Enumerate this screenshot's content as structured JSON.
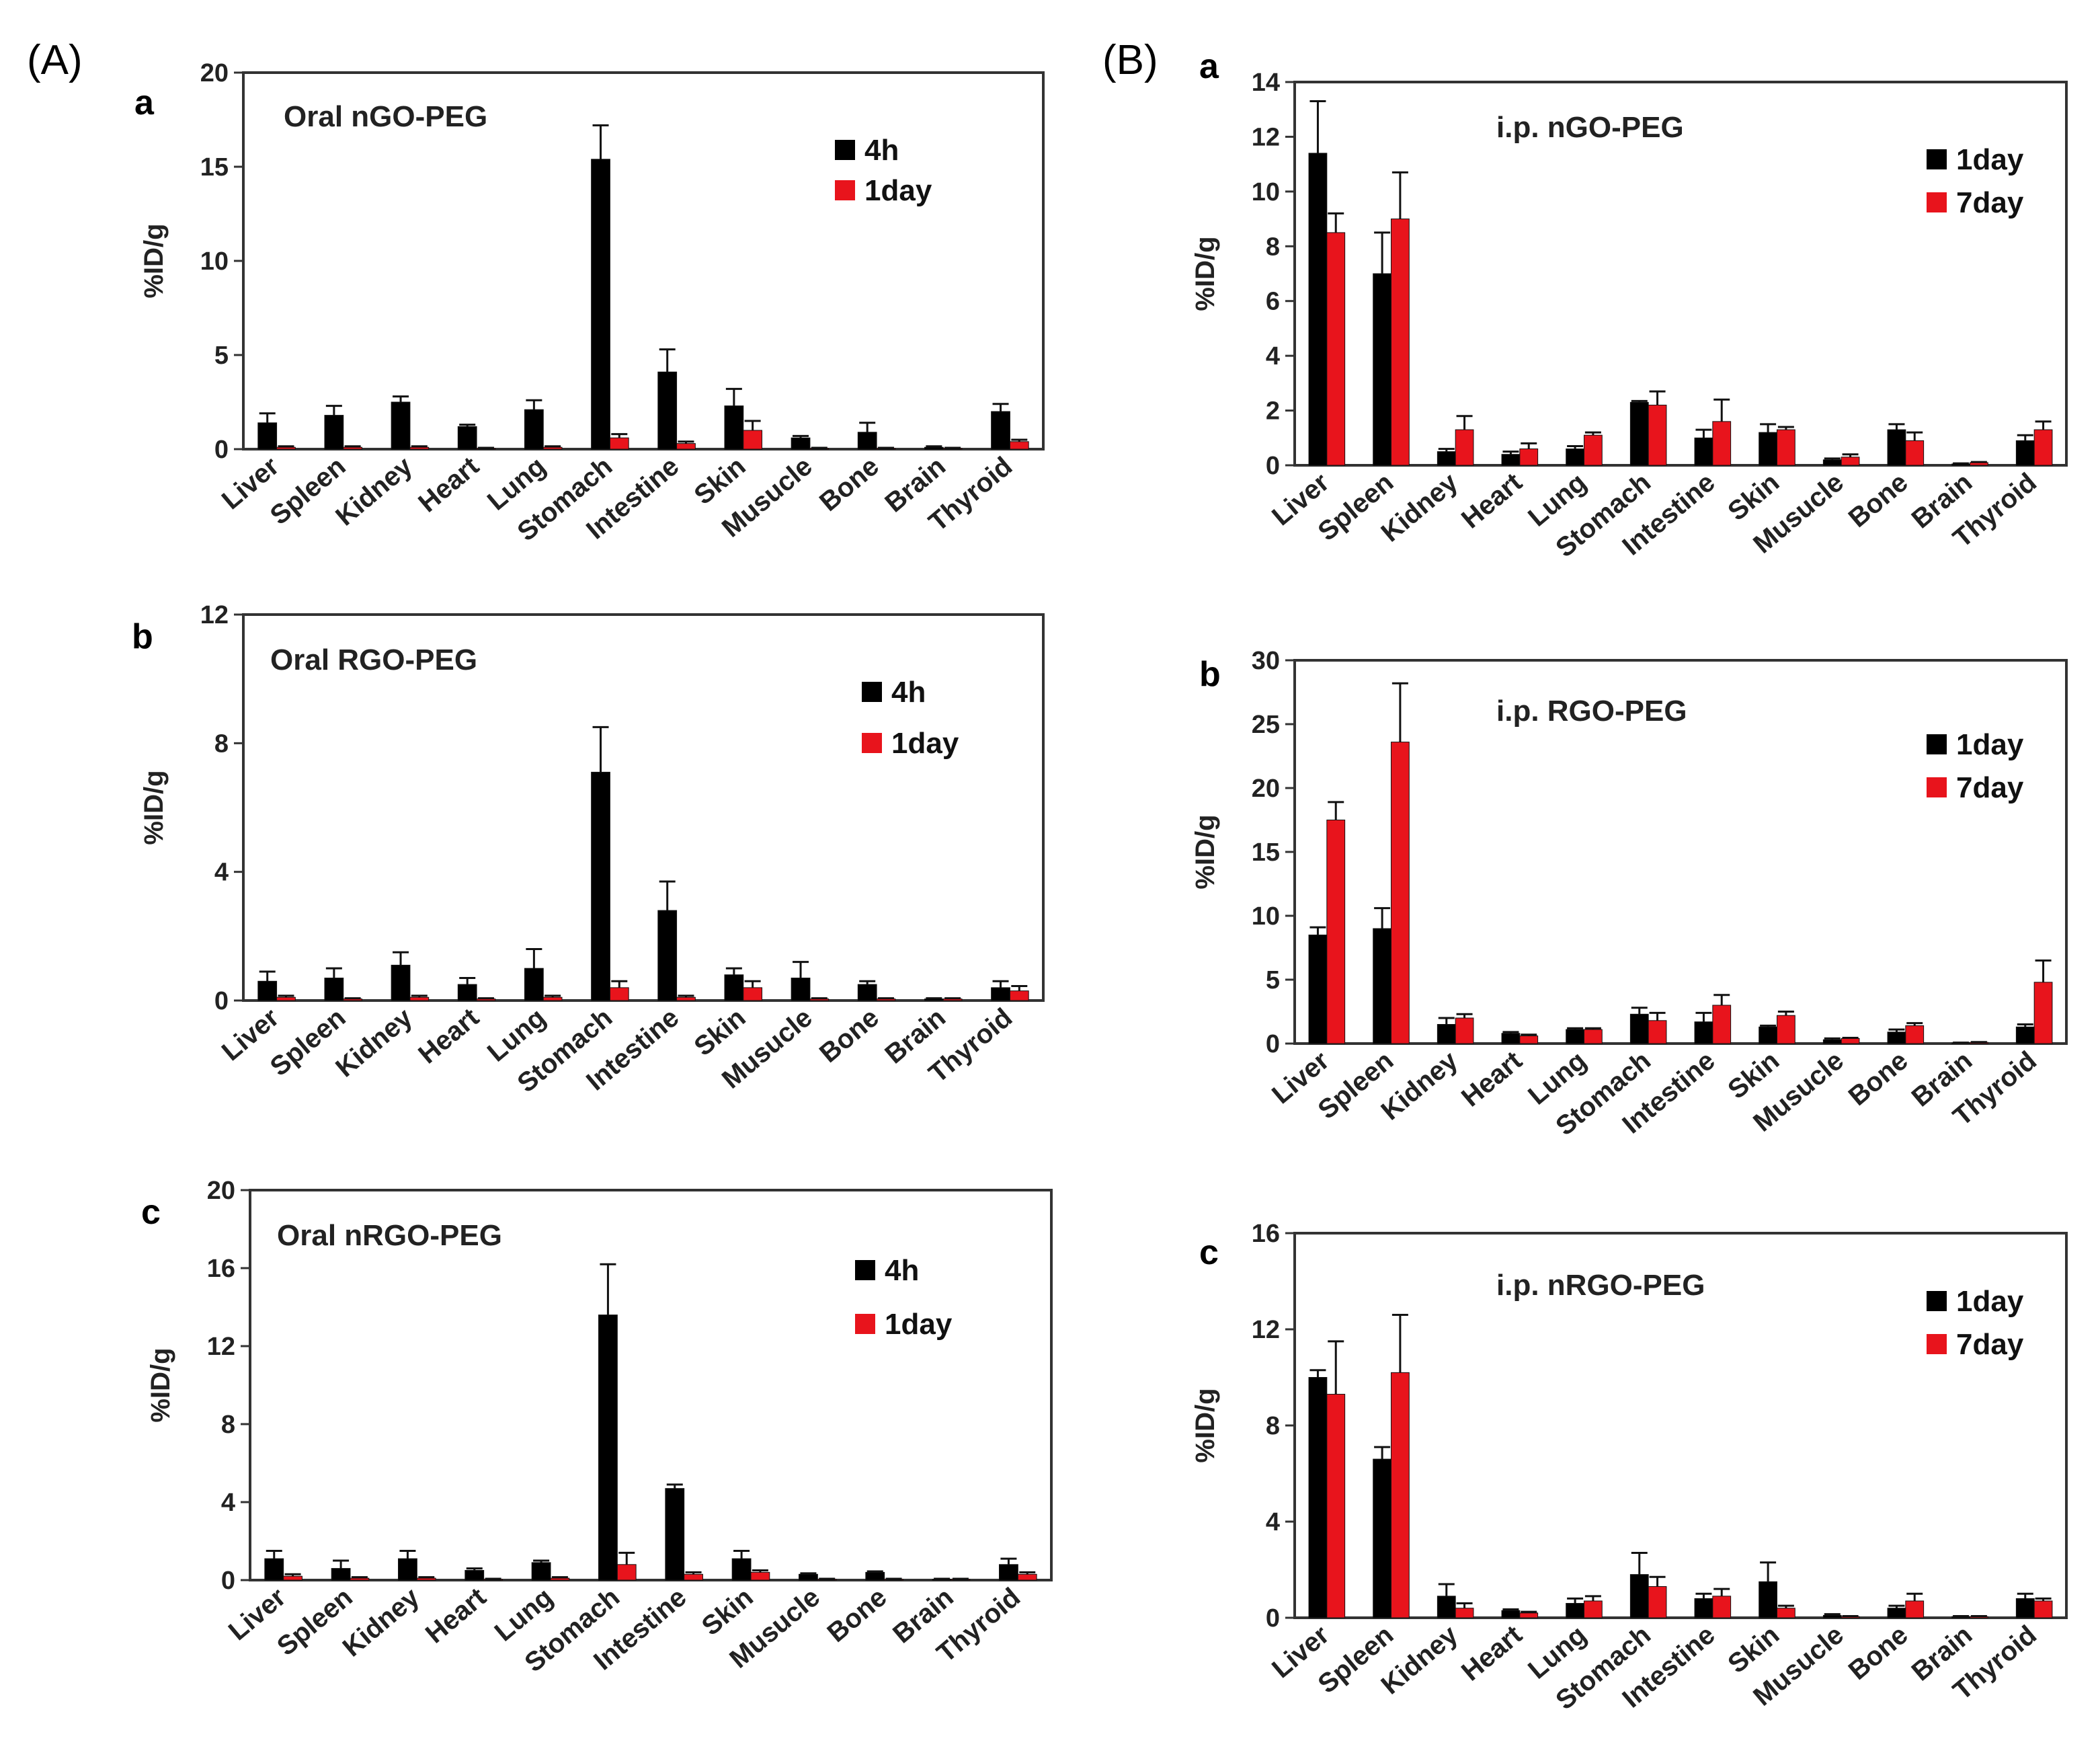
{
  "panel_labels": {
    "A": "(A)",
    "B": "(B)"
  },
  "colors": {
    "series_black": "#000000",
    "series_red": "#e8141c",
    "axis": "#333333"
  },
  "chart_data": [
    {
      "id": "A-a",
      "sub": "a",
      "type": "bar",
      "title": "Oral nGO-PEG",
      "ylabel": "%ID/g",
      "xlabel": "",
      "ylim": [
        0,
        20
      ],
      "yticks": [
        0,
        5,
        10,
        15,
        20
      ],
      "categories": [
        "Liver",
        "Spleen",
        "Kidney",
        "Heart",
        "Lung",
        "Stomach",
        "Intestine",
        "Skin",
        "Musucle",
        "Bone",
        "Brain",
        "Thyroid"
      ],
      "series": [
        {
          "name": "4h",
          "color": "#000000",
          "values": [
            1.4,
            1.8,
            2.5,
            1.2,
            2.1,
            15.4,
            4.1,
            2.3,
            0.6,
            0.9,
            0.1,
            2.0
          ],
          "errors": [
            0.5,
            0.5,
            0.3,
            0.1,
            0.5,
            1.8,
            1.2,
            0.9,
            0.1,
            0.5,
            0.05,
            0.4
          ]
        },
        {
          "name": "1day",
          "color": "#e8141c",
          "values": [
            0.1,
            0.1,
            0.1,
            0.05,
            0.1,
            0.6,
            0.3,
            1.0,
            0.05,
            0.05,
            0.05,
            0.4
          ],
          "errors": [
            0.05,
            0.05,
            0.05,
            0.02,
            0.05,
            0.2,
            0.1,
            0.5,
            0.02,
            0.02,
            0.02,
            0.1
          ]
        }
      ]
    },
    {
      "id": "A-b",
      "sub": "b",
      "type": "bar",
      "title": "Oral RGO-PEG",
      "ylabel": "%ID/g",
      "xlabel": "",
      "ylim": [
        0,
        12
      ],
      "yticks": [
        0,
        4,
        8,
        12
      ],
      "categories": [
        "Liver",
        "Spleen",
        "Kidney",
        "Heart",
        "Lung",
        "Stomach",
        "Intestine",
        "Skin",
        "Musucle",
        "Bone",
        "Brain",
        "Thyroid"
      ],
      "series": [
        {
          "name": "4h",
          "color": "#000000",
          "values": [
            0.6,
            0.7,
            1.1,
            0.5,
            1.0,
            7.1,
            2.8,
            0.8,
            0.7,
            0.5,
            0.05,
            0.4
          ],
          "errors": [
            0.3,
            0.3,
            0.4,
            0.2,
            0.6,
            1.4,
            0.9,
            0.2,
            0.5,
            0.1,
            0.02,
            0.2
          ]
        },
        {
          "name": "1day",
          "color": "#e8141c",
          "values": [
            0.1,
            0.05,
            0.1,
            0.05,
            0.1,
            0.4,
            0.1,
            0.4,
            0.05,
            0.05,
            0.05,
            0.3
          ],
          "errors": [
            0.05,
            0.02,
            0.05,
            0.02,
            0.05,
            0.2,
            0.05,
            0.2,
            0.02,
            0.02,
            0.02,
            0.15
          ]
        }
      ]
    },
    {
      "id": "A-c",
      "sub": "c",
      "type": "bar",
      "title": "Oral nRGO-PEG",
      "ylabel": "%ID/g",
      "xlabel": "",
      "ylim": [
        0,
        20
      ],
      "yticks": [
        0,
        4,
        8,
        12,
        16,
        20
      ],
      "categories": [
        "Liver",
        "Spleen",
        "Kidney",
        "Heart",
        "Lung",
        "Stomach",
        "Intestine",
        "Skin",
        "Musucle",
        "Bone",
        "Brain",
        "Thyroid"
      ],
      "series": [
        {
          "name": "4h",
          "color": "#000000",
          "values": [
            1.1,
            0.6,
            1.1,
            0.5,
            0.9,
            13.6,
            4.7,
            1.1,
            0.3,
            0.4,
            0.05,
            0.8
          ],
          "errors": [
            0.4,
            0.4,
            0.4,
            0.1,
            0.1,
            2.6,
            0.2,
            0.4,
            0.05,
            0.05,
            0.02,
            0.3
          ]
        },
        {
          "name": "1day",
          "color": "#e8141c",
          "values": [
            0.2,
            0.1,
            0.1,
            0.05,
            0.1,
            0.8,
            0.3,
            0.4,
            0.05,
            0.05,
            0.05,
            0.3
          ],
          "errors": [
            0.1,
            0.05,
            0.05,
            0.02,
            0.05,
            0.6,
            0.1,
            0.1,
            0.02,
            0.02,
            0.02,
            0.1
          ]
        }
      ]
    },
    {
      "id": "B-a",
      "sub": "a",
      "type": "bar",
      "title": "i.p. nGO-PEG",
      "ylabel": "%ID/g",
      "xlabel": "",
      "ylim": [
        0,
        14
      ],
      "yticks": [
        0,
        2,
        4,
        6,
        8,
        10,
        12,
        14
      ],
      "categories": [
        "Liver",
        "Spleen",
        "Kidney",
        "Heart",
        "Lung",
        "Stomach",
        "Intestine",
        "Skin",
        "Musucle",
        "Bone",
        "Brain",
        "Thyroid"
      ],
      "series": [
        {
          "name": "1day",
          "color": "#000000",
          "values": [
            11.4,
            7.0,
            0.5,
            0.4,
            0.6,
            2.3,
            1.0,
            1.2,
            0.2,
            1.3,
            0.05,
            0.9
          ],
          "errors": [
            1.9,
            1.5,
            0.1,
            0.1,
            0.1,
            0.05,
            0.3,
            0.3,
            0.05,
            0.2,
            0.02,
            0.2
          ]
        },
        {
          "name": "7day",
          "color": "#e8141c",
          "values": [
            8.5,
            9.0,
            1.3,
            0.6,
            1.1,
            2.2,
            1.6,
            1.3,
            0.3,
            0.9,
            0.1,
            1.3
          ],
          "errors": [
            0.7,
            1.7,
            0.5,
            0.2,
            0.1,
            0.5,
            0.8,
            0.1,
            0.1,
            0.3,
            0.02,
            0.3
          ]
        }
      ]
    },
    {
      "id": "B-b",
      "sub": "b",
      "type": "bar",
      "title": "i.p. RGO-PEG",
      "ylabel": "%ID/g",
      "xlabel": "",
      "ylim": [
        0,
        30
      ],
      "yticks": [
        0,
        5,
        10,
        15,
        20,
        25,
        30
      ],
      "categories": [
        "Liver",
        "Spleen",
        "Kidney",
        "Heart",
        "Lung",
        "Stomach",
        "Intestine",
        "Skin",
        "Musucle",
        "Bone",
        "Brain",
        "Thyroid"
      ],
      "series": [
        {
          "name": "1day",
          "color": "#000000",
          "values": [
            8.5,
            9.0,
            1.5,
            0.8,
            1.1,
            2.3,
            1.7,
            1.3,
            0.3,
            0.9,
            0.05,
            1.3
          ],
          "errors": [
            0.6,
            1.6,
            0.5,
            0.1,
            0.1,
            0.5,
            0.7,
            0.1,
            0.1,
            0.2,
            0.02,
            0.2
          ]
        },
        {
          "name": "7day",
          "color": "#e8141c",
          "values": [
            17.5,
            23.6,
            2.0,
            0.6,
            1.1,
            1.8,
            3.0,
            2.2,
            0.4,
            1.4,
            0.1,
            4.8
          ],
          "errors": [
            1.4,
            4.6,
            0.3,
            0.1,
            0.1,
            0.6,
            0.8,
            0.3,
            0.05,
            0.2,
            0.02,
            1.7
          ]
        }
      ]
    },
    {
      "id": "B-c",
      "sub": "c",
      "type": "bar",
      "title": "i.p. nRGO-PEG",
      "ylabel": "%ID/g",
      "xlabel": "",
      "ylim": [
        0,
        16
      ],
      "yticks": [
        0,
        4,
        8,
        12,
        16
      ],
      "categories": [
        "Liver",
        "Spleen",
        "Kidney",
        "Heart",
        "Lung",
        "Stomach",
        "Intestine",
        "Skin",
        "Musucle",
        "Bone",
        "Brain",
        "Thyroid"
      ],
      "series": [
        {
          "name": "1day",
          "color": "#000000",
          "values": [
            10.0,
            6.6,
            0.9,
            0.3,
            0.6,
            1.8,
            0.8,
            1.5,
            0.1,
            0.4,
            0.05,
            0.8
          ],
          "errors": [
            0.3,
            0.5,
            0.5,
            0.05,
            0.2,
            0.9,
            0.2,
            0.8,
            0.05,
            0.1,
            0.02,
            0.2
          ]
        },
        {
          "name": "7day",
          "color": "#e8141c",
          "values": [
            9.3,
            10.2,
            0.4,
            0.2,
            0.7,
            1.3,
            0.9,
            0.4,
            0.05,
            0.7,
            0.05,
            0.7
          ],
          "errors": [
            2.2,
            2.4,
            0.2,
            0.05,
            0.2,
            0.4,
            0.3,
            0.1,
            0.02,
            0.3,
            0.02,
            0.1
          ]
        }
      ]
    }
  ]
}
